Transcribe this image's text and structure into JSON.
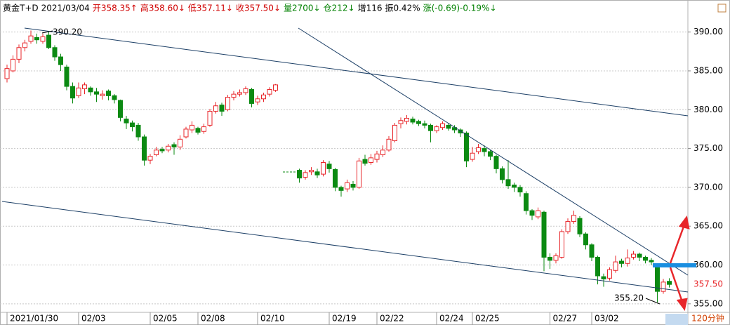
{
  "chart_data": {
    "type": "candlestick",
    "header": [
      {
        "text": "黄金T+D",
        "color": "#000000"
      },
      {
        "text": "2021/03/04",
        "color": "#000000"
      },
      {
        "text": "开358.35↑",
        "color": "#d00000"
      },
      {
        "text": "高358.60↓",
        "color": "#d00000"
      },
      {
        "text": "低357.11↓",
        "color": "#d00000"
      },
      {
        "text": "收357.50↓",
        "color": "#d00000"
      },
      {
        "text": "量2700↓",
        "color": "#008000"
      },
      {
        "text": "仓212↓",
        "color": "#008000"
      },
      {
        "text": "增116",
        "color": "#000000"
      },
      {
        "text": "振0.42%",
        "color": "#000000"
      },
      {
        "text": "涨(-0.69)-0.19%↓",
        "color": "#008000"
      }
    ],
    "period": "120分钟",
    "annotations": [
      {
        "text": "390.20"
      },
      {
        "text": "355.20"
      }
    ],
    "last_price": {
      "value": 357.5,
      "label": "357.50"
    },
    "up_color": "#e8262a",
    "down_color": "#0b8a12",
    "categories": [
      "2021/01/30",
      null,
      null,
      null,
      null,
      null,
      null,
      null,
      null,
      null,
      null,
      null,
      "02/03",
      null,
      null,
      null,
      null,
      null,
      null,
      null,
      null,
      null,
      null,
      null,
      "02/05",
      null,
      null,
      null,
      null,
      null,
      null,
      null,
      "02/08",
      null,
      null,
      null,
      null,
      null,
      null,
      null,
      null,
      null,
      "02/10",
      null,
      null,
      null,
      null,
      null,
      null,
      null,
      null,
      null,
      null,
      null,
      "02/19",
      null,
      null,
      null,
      null,
      null,
      null,
      null,
      "02/22",
      null,
      null,
      null,
      null,
      null,
      null,
      null,
      null,
      null,
      "02/24",
      null,
      null,
      null,
      null,
      null,
      "02/25",
      null,
      null,
      null,
      null,
      null,
      null,
      null,
      null,
      null,
      null,
      null,
      null,
      "02/27",
      null,
      null,
      null,
      null,
      null,
      null,
      "03/02",
      null,
      null,
      null,
      null,
      null,
      null,
      null,
      null,
      null,
      null,
      null,
      null,
      null
    ],
    "open": [
      384,
      385,
      386.5,
      388,
      388.8,
      389.3,
      388.8,
      389.6,
      388,
      386.8,
      385.5,
      383,
      381.8,
      382.7,
      382.8,
      382.3,
      381.8,
      382.4,
      381.8,
      381.2,
      378.8,
      378.3,
      378,
      376.5,
      373.5,
      374.2,
      374.9,
      374.8,
      375.5,
      375.2,
      376.5,
      377.4,
      377.6,
      377.2,
      378,
      379.8,
      380.6,
      380,
      381.6,
      382,
      382.2,
      382.6,
      381,
      381.4,
      382,
      382.5,
      null,
      null,
      null,
      372.2,
      371.3,
      372,
      372,
      371.7,
      373,
      372.3,
      370,
      369.8,
      370.4,
      370,
      373.6,
      373.2,
      373.6,
      374.2,
      374.8,
      376,
      378.2,
      378.5,
      378.8,
      378.5,
      378.2,
      378,
      377.3,
      377.7,
      378,
      377.7,
      377.4,
      377,
      373.6,
      374.6,
      375,
      374.6,
      374,
      372.4,
      371,
      370.3,
      370,
      369.2,
      367,
      366.2,
      366.8,
      361,
      360.6,
      361,
      364.3,
      365.6,
      366,
      364,
      362.6,
      361,
      358.5,
      358.3,
      359.3,
      360.5,
      360.2,
      361,
      361.4,
      361,
      360.6,
      360,
      356.6,
      357.9
    ],
    "high": [
      385.8,
      387,
      388.4,
      389,
      390.2,
      389.8,
      389.8,
      390,
      388.3,
      387.2,
      385.8,
      383.5,
      383.5,
      383.5,
      383,
      382.8,
      382.5,
      382.6,
      382,
      381.3,
      379.2,
      378.6,
      378.3,
      376.8,
      374.3,
      375.2,
      375.2,
      375.6,
      375.8,
      376.7,
      377.8,
      378.5,
      377.8,
      378.2,
      380.1,
      381,
      380.9,
      381.9,
      382.4,
      382.6,
      383,
      382.8,
      381.8,
      382.2,
      382.9,
      383.3,
      null,
      null,
      null,
      372.4,
      372.2,
      372.6,
      372.4,
      373.5,
      373.4,
      372.5,
      370.2,
      371,
      370.8,
      373.8,
      374.2,
      374.3,
      374.7,
      375.4,
      376.6,
      378.3,
      379,
      379.3,
      379.1,
      378.7,
      378.6,
      378.2,
      378,
      378.5,
      378.3,
      378,
      377.6,
      377.2,
      375.2,
      375.6,
      375.4,
      374.8,
      374.2,
      372.7,
      373.5,
      370.6,
      370.3,
      369.5,
      367.2,
      367.4,
      367,
      361.5,
      361.5,
      364.6,
      366,
      367,
      366.3,
      364.2,
      362.8,
      361.2,
      358.9,
      359.7,
      361.2,
      360.8,
      362,
      361.8,
      361.6,
      361.2,
      360.9,
      360.2,
      358.2,
      358.3
    ],
    "low": [
      383.5,
      384.8,
      386,
      387.5,
      388.5,
      388.5,
      388.5,
      387.8,
      386.3,
      385,
      382.5,
      380.8,
      381.5,
      382,
      381.8,
      381,
      381.3,
      381.2,
      380.8,
      378.5,
      377.5,
      377.2,
      376,
      372.8,
      373,
      374,
      374.4,
      374.5,
      374.2,
      374.8,
      376.3,
      377,
      376.8,
      376.9,
      377.8,
      379.5,
      379.2,
      379.8,
      381.2,
      381.7,
      381.9,
      380.3,
      380.6,
      381,
      381.7,
      382.3,
      null,
      null,
      null,
      370.6,
      371,
      371.6,
      371.2,
      371.4,
      371.9,
      369.5,
      368.8,
      369.4,
      369.6,
      369.8,
      372.8,
      372.9,
      373.2,
      373.9,
      374.6,
      375.8,
      377.6,
      378.1,
      378.1,
      377.9,
      377.6,
      375.8,
      377,
      377.4,
      377.3,
      377,
      376.5,
      372.6,
      373.3,
      374.3,
      374,
      373.5,
      371.8,
      370.5,
      369.8,
      369.4,
      368.8,
      366.5,
      365.8,
      365.9,
      359.2,
      359.5,
      360.2,
      360.8,
      364,
      365.3,
      363.6,
      362,
      360.5,
      357.5,
      357.2,
      358,
      359,
      359.7,
      359.8,
      360.7,
      360.5,
      360.2,
      360,
      355.2,
      356.3,
      357.1
    ],
    "close": [
      385.3,
      386.5,
      388,
      388.6,
      389.5,
      389,
      389.4,
      388,
      386.8,
      385.8,
      383,
      381.5,
      382.8,
      383.2,
      382.3,
      382,
      382,
      381.8,
      381.3,
      379,
      378.3,
      377.8,
      376.5,
      373.5,
      374,
      374.8,
      374.7,
      375.3,
      375.2,
      376.2,
      377.5,
      378,
      377.1,
      377.8,
      379.8,
      380.5,
      379.8,
      381.6,
      382,
      382.2,
      382.7,
      380.8,
      381.4,
      381.9,
      382.6,
      383.2,
      null,
      null,
      null,
      371.2,
      371.9,
      372.2,
      371.6,
      373.2,
      372.4,
      370,
      369.6,
      370.6,
      370,
      373.4,
      373.1,
      373.8,
      374.3,
      374.8,
      376.2,
      378,
      378.6,
      378.9,
      378.4,
      378.2,
      378,
      377.3,
      377.8,
      378.2,
      377.6,
      377.4,
      377,
      373.4,
      374.4,
      375.1,
      374.6,
      374,
      372.4,
      371,
      370.2,
      370,
      369.4,
      367,
      366.4,
      367,
      361,
      360.6,
      361.2,
      364.3,
      365.6,
      366.4,
      364,
      362.6,
      361,
      358.6,
      358.2,
      359.4,
      360.4,
      360.2,
      360.9,
      361.4,
      361,
      360.6,
      360.4,
      356.6,
      357.8,
      357.5
    ],
    "ylim": [
      353.9,
      392.5
    ],
    "yticks": [
      {
        "value": 355,
        "label": "355.00"
      },
      {
        "value": 360,
        "label": "360.00"
      },
      {
        "value": 365,
        "label": "365.00"
      },
      {
        "value": 370,
        "label": "370.00"
      },
      {
        "value": 375,
        "label": "375.00"
      },
      {
        "value": 380,
        "label": "380.00"
      },
      {
        "value": 385,
        "label": "385.00"
      },
      {
        "value": 390,
        "label": "390.00"
      }
    ],
    "grid": true
  }
}
